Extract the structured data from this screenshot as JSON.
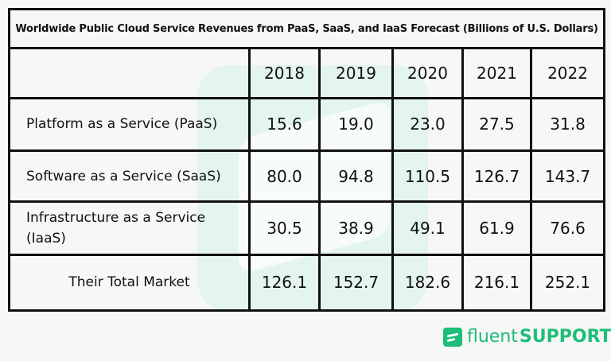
{
  "chart_data": {
    "type": "table",
    "title": "Worldwide Public Cloud Service Revenues from PaaS, SaaS, and IaaS Forecast (Billions of U.S. Dollars)",
    "columns": [
      "2018",
      "2019",
      "2020",
      "2021",
      "2022"
    ],
    "rows": [
      {
        "label": "Platform as a Service (PaaS)",
        "values": [
          "15.6",
          "19.0",
          "23.0",
          "27.5",
          "31.8"
        ]
      },
      {
        "label": "Software as a Service (SaaS)",
        "values": [
          "80.0",
          "94.8",
          "110.5",
          "126.7",
          "143.7"
        ]
      },
      {
        "label": "Infrastructure as a Service (IaaS)",
        "values": [
          "30.5",
          "38.9",
          "49.1",
          "61.9",
          "76.6"
        ]
      },
      {
        "label": "Their Total Market",
        "values": [
          "126.1",
          "152.7",
          "182.6",
          "216.1",
          "252.1"
        ]
      }
    ]
  },
  "logo": {
    "text_light": "fluent",
    "text_bold": "SUPPORT",
    "color": "#1ebd78"
  }
}
